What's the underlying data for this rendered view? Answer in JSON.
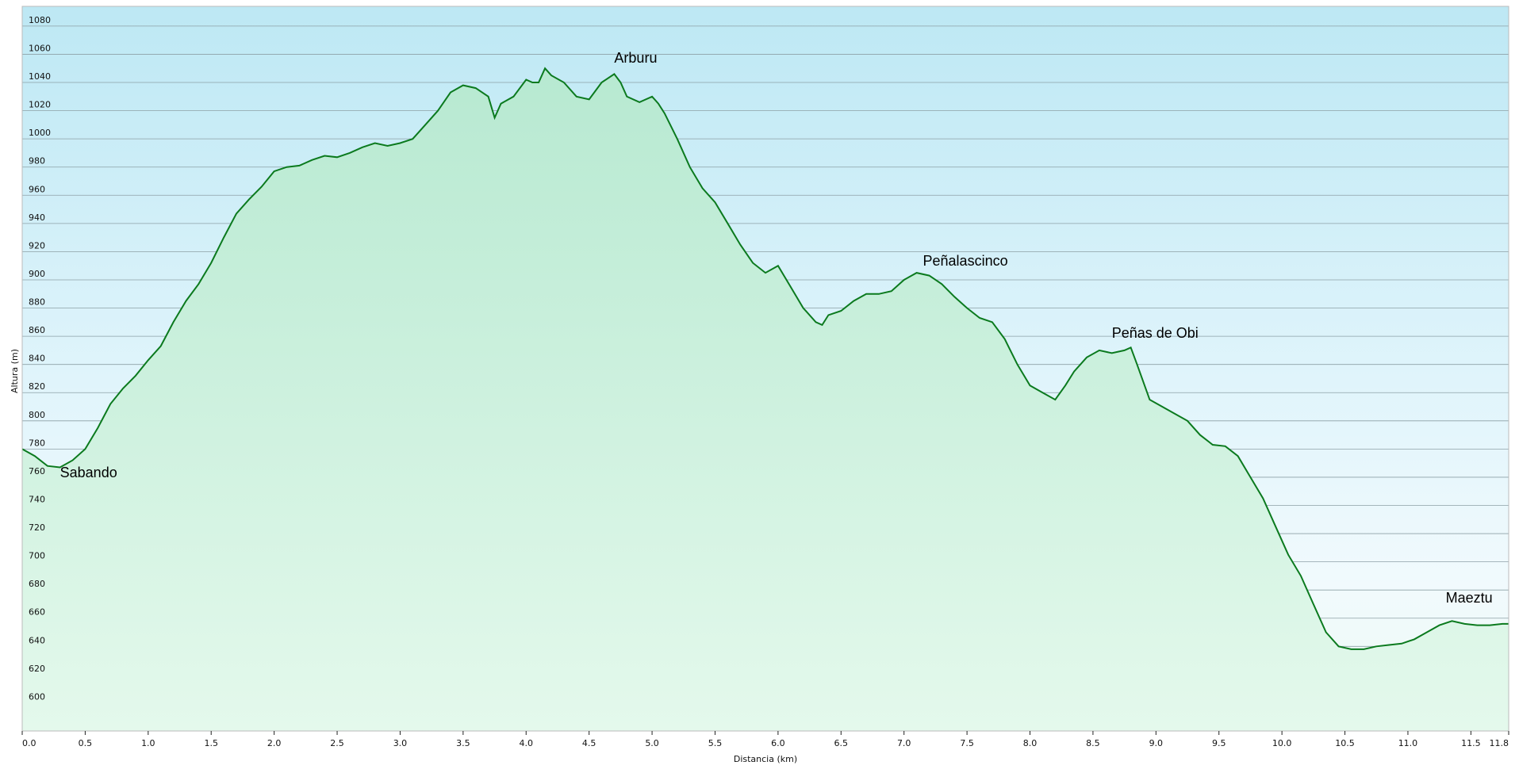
{
  "chart_data": {
    "type": "area",
    "xlabel": "Distancia  (km)",
    "ylabel": "Altura (m)",
    "xlim": [
      0,
      11.8
    ],
    "ylim": [
      580,
      1094
    ],
    "x_ticks": [
      0.0,
      0.5,
      1.0,
      1.5,
      2.0,
      2.5,
      3.0,
      3.5,
      4.0,
      4.5,
      5.0,
      5.5,
      6.0,
      6.5,
      7.0,
      7.5,
      8.0,
      8.5,
      9.0,
      9.5,
      10.0,
      10.5,
      11.0,
      11.5,
      11.8
    ],
    "x_tick_labels": [
      "0.0",
      "0.5",
      "1.0",
      "1.5",
      "2.0",
      "2.5",
      "3.0",
      "3.5",
      "4.0",
      "4.5",
      "5.0",
      "5.5",
      "6.0",
      "6.5",
      "7.0",
      "7.5",
      "8.0",
      "8.5",
      "9.0",
      "9.5",
      "10.0",
      "10.5",
      "11.0",
      "11.5",
      "11.8"
    ],
    "y_ticks": [
      600,
      620,
      640,
      660,
      680,
      700,
      720,
      740,
      760,
      780,
      800,
      820,
      840,
      860,
      880,
      900,
      920,
      940,
      960,
      980,
      1000,
      1020,
      1040,
      1060,
      1080
    ],
    "grid": true,
    "line_color": "#0b7a1e",
    "annotations": [
      {
        "text": "Sabando",
        "x": 0.3,
        "y": 760
      },
      {
        "text": "Arburu",
        "x": 4.7,
        "y": 1054
      },
      {
        "text": "Peñalascinco",
        "x": 7.15,
        "y": 910
      },
      {
        "text": "Peñas de Obi",
        "x": 8.65,
        "y": 859
      },
      {
        "text": "Maeztu",
        "x": 11.3,
        "y": 671
      }
    ],
    "x": [
      0.0,
      0.1,
      0.2,
      0.3,
      0.4,
      0.5,
      0.6,
      0.7,
      0.8,
      0.9,
      1.0,
      1.1,
      1.2,
      1.3,
      1.4,
      1.5,
      1.6,
      1.7,
      1.8,
      1.9,
      2.0,
      2.1,
      2.2,
      2.3,
      2.4,
      2.5,
      2.6,
      2.7,
      2.8,
      2.9,
      3.0,
      3.1,
      3.2,
      3.3,
      3.4,
      3.5,
      3.6,
      3.7,
      3.75,
      3.8,
      3.9,
      4.0,
      4.05,
      4.1,
      4.15,
      4.2,
      4.3,
      4.4,
      4.5,
      4.6,
      4.7,
      4.75,
      4.8,
      4.9,
      5.0,
      5.05,
      5.1,
      5.2,
      5.3,
      5.4,
      5.5,
      5.6,
      5.7,
      5.8,
      5.9,
      6.0,
      6.1,
      6.2,
      6.3,
      6.35,
      6.4,
      6.5,
      6.6,
      6.7,
      6.8,
      6.9,
      7.0,
      7.1,
      7.2,
      7.3,
      7.4,
      7.5,
      7.6,
      7.7,
      7.8,
      7.9,
      8.0,
      8.1,
      8.2,
      8.28,
      8.35,
      8.45,
      8.55,
      8.65,
      8.75,
      8.8,
      8.85,
      8.95,
      9.05,
      9.15,
      9.25,
      9.35,
      9.45,
      9.55,
      9.65,
      9.75,
      9.85,
      9.95,
      10.05,
      10.15,
      10.25,
      10.35,
      10.45,
      10.55,
      10.65,
      10.75,
      10.85,
      10.95,
      11.05,
      11.15,
      11.25,
      11.35,
      11.45,
      11.55,
      11.65,
      11.75,
      11.8
    ],
    "y": [
      780,
      775,
      768,
      767,
      772,
      780,
      795,
      812,
      823,
      832,
      843,
      853,
      870,
      885,
      897,
      912,
      930,
      947,
      957,
      966,
      977,
      980,
      981,
      985,
      988,
      987,
      990,
      994,
      997,
      995,
      997,
      1000,
      1010,
      1020,
      1033,
      1038,
      1036,
      1030,
      1015,
      1025,
      1030,
      1042,
      1040,
      1040,
      1050,
      1045,
      1040,
      1030,
      1028,
      1040,
      1046,
      1040,
      1030,
      1026,
      1030,
      1025,
      1018,
      1000,
      980,
      965,
      955,
      940,
      925,
      912,
      905,
      910,
      895,
      880,
      870,
      868,
      875,
      878,
      885,
      890,
      890,
      892,
      900,
      905,
      903,
      897,
      888,
      880,
      873,
      870,
      858,
      840,
      825,
      820,
      815,
      825,
      835,
      845,
      850,
      848,
      850,
      852,
      840,
      815,
      810,
      805,
      800,
      790,
      783,
      782,
      775,
      760,
      745,
      725,
      705,
      690,
      670,
      650,
      640,
      638,
      638,
      640,
      641,
      642,
      645,
      650,
      655,
      658,
      656,
      655,
      655,
      656,
      656
    ]
  }
}
